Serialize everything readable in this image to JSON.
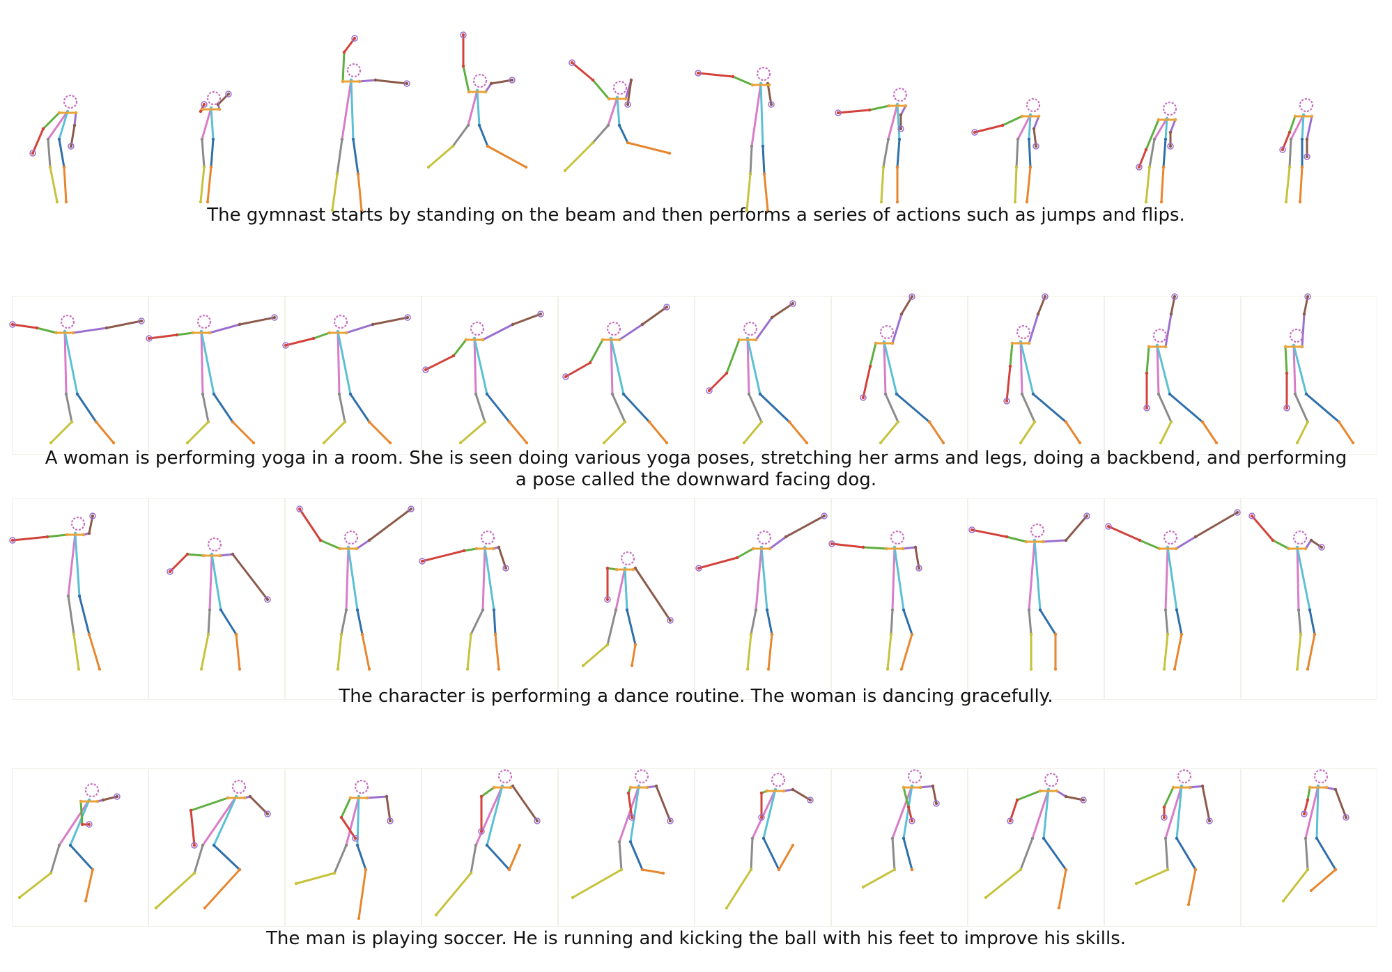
{
  "rows": [
    {
      "caption": "The gymnast starts by standing on the beam and then performs a series of actions such as jumps and flips.",
      "frames": 10
    },
    {
      "caption": "A woman is performing yoga in a room. She is seen doing various yoga poses, stretching her arms and legs, doing a backbend, and performing a pose called the downward facing dog.",
      "frames": 10
    },
    {
      "caption": "The character is performing a dance routine. The woman is dancing gracefully.",
      "frames": 10
    },
    {
      "caption": "The man is playing soccer. He is running and kicking the ball with his feet to improve his skills.",
      "frames": 10
    }
  ],
  "palette": {
    "spine_upper": "#5bc0d4",
    "spine_lower": "#d87cc8",
    "left_arm": "#5fae3f",
    "left_forearm": "#d2423a",
    "right_arm": "#9a6fcf",
    "right_forearm": "#8b5a4a",
    "left_thigh": "#8a8a8a",
    "left_shin": "#c6c23c",
    "right_thigh": "#2f6faa",
    "right_shin": "#e8862e",
    "head": "#c86fc0"
  }
}
